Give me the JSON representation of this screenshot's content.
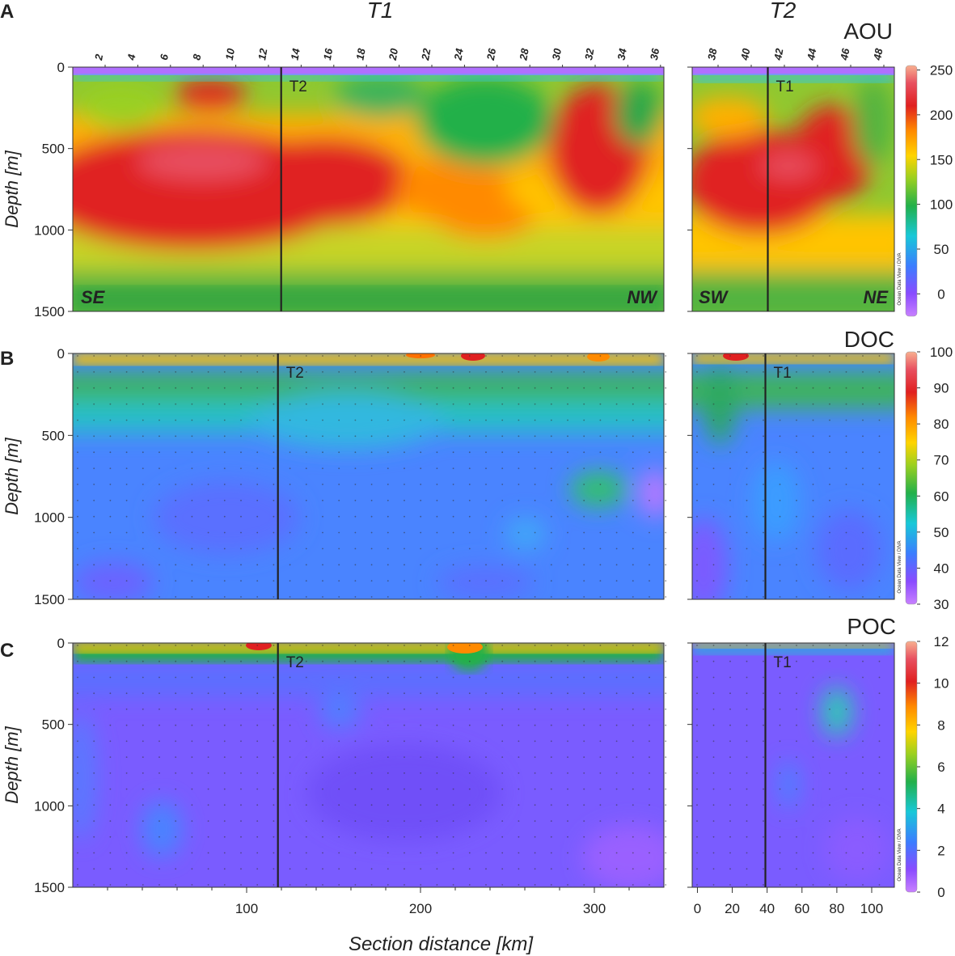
{
  "chart_data": {
    "type": "heatmap",
    "transect_titles": [
      "T1",
      "T2"
    ],
    "xlabel": "Section distance [km]",
    "ylabel": "Depth [m]",
    "y_ticks": [
      0,
      500,
      1000,
      1500
    ],
    "ylim": [
      0,
      1500
    ],
    "station_numbers_t1": [
      "2",
      "4",
      "6",
      "8",
      "10",
      "12",
      "14",
      "16",
      "18",
      "20",
      "22",
      "24",
      "26",
      "28",
      "30",
      "32",
      "34",
      "36"
    ],
    "station_numbers_t2": [
      "38",
      "40",
      "42",
      "44",
      "46",
      "48"
    ],
    "x_ticks_t1": [
      100,
      200,
      300
    ],
    "xlim_t1": [
      0,
      340
    ],
    "x_ticks_t2": [
      0,
      20,
      40,
      60,
      80,
      100
    ],
    "xlim_t2": [
      -3,
      113
    ],
    "crossing_label_on_t1": "T2",
    "crossing_label_on_t2": "T1",
    "crossing_distance_t1_km": 118,
    "crossing_distance_t2_km": 39,
    "watermark": "Ocean Data View / DIVA",
    "panels": [
      {
        "letter": "A",
        "variable": "AOU",
        "colorbar_ticks": [
          250,
          200,
          150,
          100,
          50,
          0
        ],
        "colorbar_range": [
          -25,
          255
        ],
        "direction_t1": [
          "SE",
          "NW"
        ],
        "direction_t2": [
          "SW",
          "NE"
        ],
        "overview": "Low AOU (<50) in the upper ~50 m; maximum 200-250 at 300-800 m along T1 (0-170 km) and across most of T2; ~150-180 below 900 m"
      },
      {
        "letter": "B",
        "variable": "DOC",
        "colorbar_ticks": [
          100,
          90,
          80,
          70,
          60,
          50,
          40,
          30
        ],
        "colorbar_range": [
          30,
          100
        ],
        "overview": "DOC 70-95 in the upper ~100 m, decreasing to ~40-45 at depth"
      },
      {
        "letter": "C",
        "variable": "POC",
        "colorbar_ticks": [
          12,
          10,
          8,
          6,
          4,
          2,
          0
        ],
        "colorbar_range": [
          0,
          12
        ],
        "overview": "POC 6-10 in a thin surface layer, ~1-2 below ~150 m"
      }
    ]
  }
}
